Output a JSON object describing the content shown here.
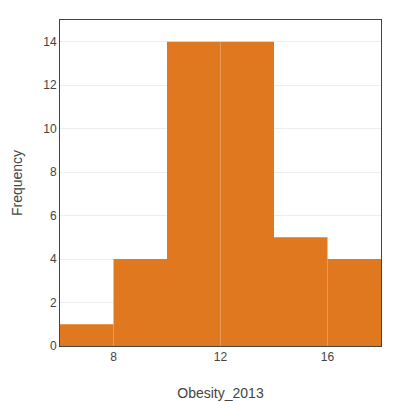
{
  "chart_data": {
    "type": "histogram",
    "bins": [
      6,
      8,
      10,
      12,
      14,
      16,
      18
    ],
    "values": [
      1,
      4,
      14,
      14,
      5,
      4
    ],
    "color": "#E07820",
    "xlabel": "Obesity_2013",
    "ylabel": "Frequency",
    "xlim": [
      6,
      18
    ],
    "ylim": [
      0,
      15
    ],
    "xticks": [
      8,
      12,
      16
    ],
    "yticks": [
      0,
      2,
      4,
      6,
      8,
      10,
      12,
      14
    ],
    "grid": "y"
  }
}
